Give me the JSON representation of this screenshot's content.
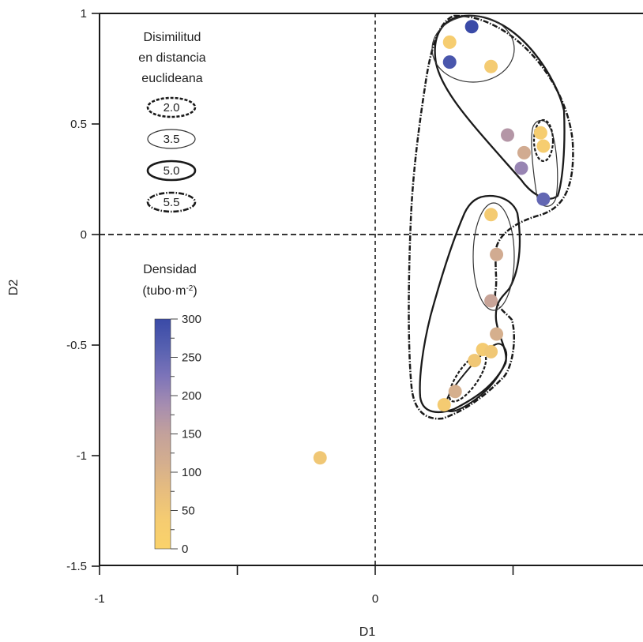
{
  "chart_data": {
    "type": "scatter",
    "xlabel": "D1",
    "ylabel": "D2",
    "xlim": [
      -1,
      0.97
    ],
    "ylim": [
      -1.5,
      1
    ],
    "x_ticks": [
      "-1",
      "0"
    ],
    "y_ticks": [
      "1",
      "0.5",
      "0",
      "-0.5",
      "-1",
      "-1.5"
    ],
    "reference_lines": {
      "x": 0,
      "y": 0,
      "style": "dashed"
    },
    "dissimilarity_legend": {
      "title_lines": [
        "Disimilitud",
        "en distancia",
        "euclideana"
      ],
      "items": [
        {
          "label": "2.0",
          "style": "dashed-bold"
        },
        {
          "label": "3.5",
          "style": "thin-solid"
        },
        {
          "label": "5.0",
          "style": "bold-solid"
        },
        {
          "label": "5.5",
          "style": "dash-dot"
        }
      ]
    },
    "density_legend": {
      "title": "Densidad",
      "unit_prefix": "(tubo·m",
      "unit_sup": "-2",
      "unit_suffix": ")",
      "min": 0,
      "max": 300,
      "tick_labels": [
        "300",
        "250",
        "200",
        "150",
        "100",
        "50",
        "0"
      ],
      "colors": [
        "#fad26a",
        "#f5cc71",
        "#e7bd7e",
        "#d4ae8e",
        "#c3a19b",
        "#a68db0",
        "#7d74b9",
        "#5660b0",
        "#3a4aa7"
      ]
    },
    "points": [
      {
        "x": 0.35,
        "y": 0.94,
        "density": 300
      },
      {
        "x": 0.27,
        "y": 0.87,
        "density": 30
      },
      {
        "x": 0.27,
        "y": 0.78,
        "density": 280
      },
      {
        "x": 0.42,
        "y": 0.76,
        "density": 40
      },
      {
        "x": 0.48,
        "y": 0.45,
        "density": 170
      },
      {
        "x": 0.54,
        "y": 0.37,
        "density": 120
      },
      {
        "x": 0.53,
        "y": 0.3,
        "density": 200
      },
      {
        "x": 0.6,
        "y": 0.46,
        "density": 30
      },
      {
        "x": 0.61,
        "y": 0.4,
        "density": 30
      },
      {
        "x": 0.61,
        "y": 0.16,
        "density": 250
      },
      {
        "x": 0.42,
        "y": 0.09,
        "density": 40
      },
      {
        "x": 0.44,
        "y": -0.09,
        "density": 120
      },
      {
        "x": 0.42,
        "y": -0.3,
        "density": 140
      },
      {
        "x": 0.44,
        "y": -0.45,
        "density": 110
      },
      {
        "x": 0.39,
        "y": -0.52,
        "density": 40
      },
      {
        "x": 0.42,
        "y": -0.53,
        "density": 50
      },
      {
        "x": 0.36,
        "y": -0.57,
        "density": 50
      },
      {
        "x": 0.29,
        "y": -0.71,
        "density": 110
      },
      {
        "x": 0.25,
        "y": -0.77,
        "density": 40
      },
      {
        "x": -0.2,
        "y": -1.01,
        "density": 50
      }
    ]
  }
}
